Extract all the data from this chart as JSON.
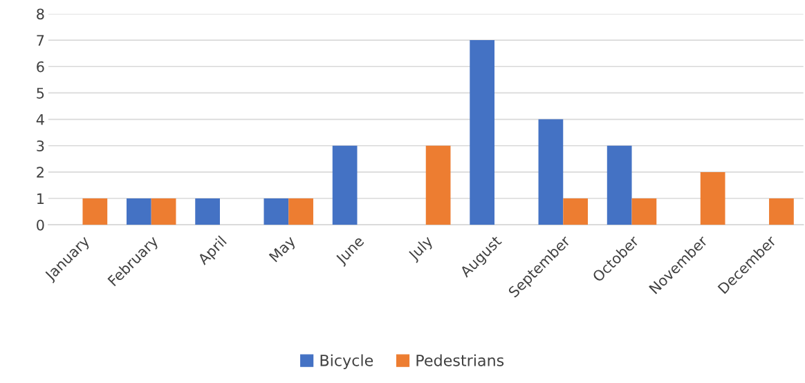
{
  "chart_data": {
    "type": "bar",
    "categories": [
      "January",
      "February",
      "April",
      "May",
      "June",
      "July",
      "August",
      "September",
      "October",
      "November",
      "December"
    ],
    "series": [
      {
        "name": "Bicycle",
        "color": "#4472c4",
        "values": [
          0,
          1,
          1,
          1,
          3,
          0,
          7,
          4,
          3,
          0,
          0
        ]
      },
      {
        "name": "Pedestrians",
        "color": "#ed7d31",
        "values": [
          1,
          1,
          0,
          1,
          0,
          3,
          0,
          1,
          1,
          2,
          1
        ]
      }
    ],
    "ylim": [
      0,
      8
    ],
    "yticks": [
      0,
      1,
      2,
      3,
      4,
      5,
      6,
      7,
      8
    ],
    "grid": "y",
    "legend": "bottom"
  }
}
